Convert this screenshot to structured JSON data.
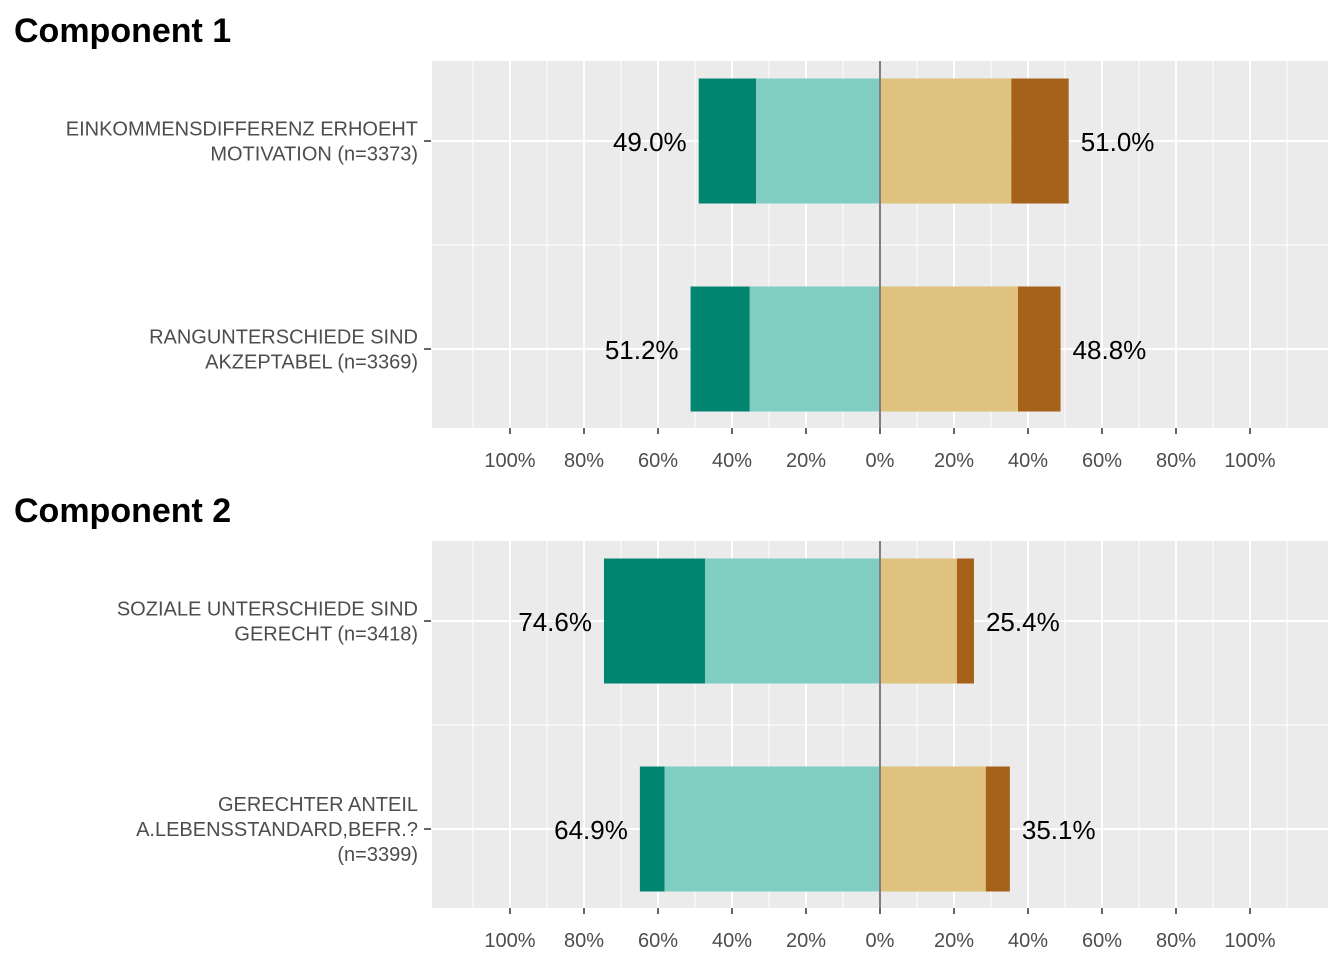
{
  "colors": {
    "strong_disagree": "#018571",
    "disagree": "#80cdc1",
    "agree": "#dfc27d",
    "strong_agree": "#a6611a",
    "panel_bg": "#ebebeb",
    "grid": "#ffffff",
    "zero_line": "#7f7f7f"
  },
  "chart_data": [
    {
      "type": "bar",
      "orientation": "horizontal-diverging",
      "title": "Component 1",
      "xlim": [
        -1.2,
        1.2
      ],
      "x_ticks": [
        -1.0,
        -0.8,
        -0.6,
        -0.4,
        -0.2,
        0,
        0.2,
        0.4,
        0.6,
        0.8,
        1.0
      ],
      "x_tick_labels": [
        "100%",
        "80%",
        "60%",
        "40%",
        "20%",
        "0%",
        "20%",
        "40%",
        "60%",
        "80%",
        "100%"
      ],
      "grid": true,
      "items": [
        {
          "label_lines": [
            "EINKOMMENSDIFFERENZ ERHOEHT",
            "MOTIVATION (n=3373)"
          ],
          "segments": {
            "strong_disagree": 0.155,
            "disagree": 0.335,
            "agree": 0.355,
            "strong_agree": 0.155
          },
          "left_label": "49.0%",
          "right_label": "51.0%"
        },
        {
          "label_lines": [
            "RANGUNTERSCHIEDE SIND",
            "AKZEPTABEL (n=3369)"
          ],
          "segments": {
            "strong_disagree": 0.16,
            "disagree": 0.352,
            "agree": 0.373,
            "strong_agree": 0.115
          },
          "left_label": "51.2%",
          "right_label": "48.8%"
        }
      ]
    },
    {
      "type": "bar",
      "orientation": "horizontal-diverging",
      "title": "Component 2",
      "xlim": [
        -1.2,
        1.2
      ],
      "x_ticks": [
        -1.0,
        -0.8,
        -0.6,
        -0.4,
        -0.2,
        0,
        0.2,
        0.4,
        0.6,
        0.8,
        1.0
      ],
      "x_tick_labels": [
        "100%",
        "80%",
        "60%",
        "40%",
        "20%",
        "0%",
        "20%",
        "40%",
        "60%",
        "80%",
        "100%"
      ],
      "grid": true,
      "items": [
        {
          "label_lines": [
            "SOZIALE UNTERSCHIEDE SIND",
            "GERECHT (n=3418)"
          ],
          "segments": {
            "strong_disagree": 0.273,
            "disagree": 0.473,
            "agree": 0.208,
            "strong_agree": 0.046
          },
          "left_label": "74.6%",
          "right_label": "25.4%"
        },
        {
          "label_lines": [
            "GERECHTER ANTEIL",
            "A.LEBENSSTANDARD,BEFR.?",
            "(n=3399)"
          ],
          "segments": {
            "strong_disagree": 0.067,
            "disagree": 0.582,
            "agree": 0.286,
            "strong_agree": 0.065
          },
          "left_label": "64.9%",
          "right_label": "35.1%"
        }
      ]
    }
  ]
}
